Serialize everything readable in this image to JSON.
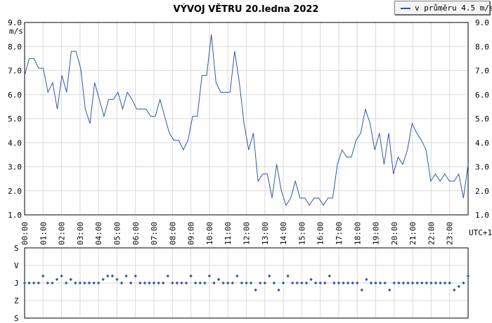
{
  "chart_data": [
    {
      "type": "line",
      "title": "VÝVOJ VĚTRU  20.ledna 2022",
      "ylabel": "m/s",
      "xlabel": "UTC+1",
      "legend": {
        "label": "v průměru 4.5 m/s",
        "placement": "top-right"
      },
      "color": "#3355aa",
      "grid": true,
      "ylim": [
        1.0,
        9.0
      ],
      "yticks": [
        "1.0",
        "2.0",
        "3.0",
        "4.0",
        "5.0",
        "6.0",
        "7.0",
        "8.0",
        "9.0"
      ],
      "xlim": [
        0,
        24
      ],
      "xticks": [
        "00:00",
        "01:00",
        "02:00",
        "03:00",
        "04:00",
        "05:00",
        "06:00",
        "07:00",
        "08:00",
        "09:00",
        "10:00",
        "11:00",
        "12:00",
        "13:00",
        "14:00",
        "15:00",
        "16:00",
        "17:00",
        "18:00",
        "19:00",
        "20:00",
        "21:00",
        "22:00",
        "23:00"
      ],
      "series": [
        {
          "values": [
            6.8,
            7.5,
            7.5,
            7.1,
            7.1,
            6.1,
            6.5,
            5.4,
            6.8,
            6.1,
            7.8,
            7.8,
            7.1,
            5.4,
            4.8,
            6.5,
            5.8,
            5.1,
            5.8,
            5.8,
            6.1,
            5.4,
            6.1,
            5.8,
            5.4,
            5.4,
            5.4,
            5.1,
            5.1,
            5.8,
            5.1,
            4.4,
            4.1,
            4.1,
            3.7,
            4.1,
            5.1,
            5.1,
            6.8,
            6.8,
            8.5,
            6.5,
            6.1,
            6.1,
            6.1,
            7.8,
            6.5,
            4.8,
            3.7,
            4.4,
            2.4,
            2.7,
            2.7,
            1.7,
            3.1,
            2.0,
            1.4,
            1.7,
            2.4,
            1.7,
            1.7,
            1.4,
            1.7,
            1.7,
            1.4,
            1.7,
            1.7,
            3.1,
            3.7,
            3.4,
            3.4,
            4.1,
            4.4,
            5.4,
            4.8,
            3.7,
            4.4,
            3.1,
            4.4,
            2.7,
            3.4,
            3.1,
            3.7,
            4.8,
            4.4,
            4.1,
            3.7,
            2.4,
            2.7,
            2.4,
            2.7,
            2.4,
            2.4,
            2.7,
            1.7,
            3.1
          ]
        }
      ]
    },
    {
      "type": "scatter",
      "yticks": [
        "S",
        "V",
        "J",
        "Z",
        "S"
      ],
      "ylim": [
        0,
        4
      ],
      "color": "#3355aa",
      "grid": true,
      "values": [
        2,
        2,
        2,
        2,
        1.6,
        2,
        2,
        1.8,
        1.6,
        2,
        1.8,
        2,
        2,
        2,
        2,
        2,
        2,
        1.8,
        1.6,
        1.6,
        1.8,
        2,
        1.6,
        2,
        1.6,
        2,
        2,
        2,
        2,
        2,
        2,
        1.6,
        2,
        2,
        2,
        2,
        1.6,
        2,
        2,
        2,
        1.6,
        2,
        1.8,
        2,
        2,
        2,
        1.6,
        2,
        2,
        2,
        2.4,
        2,
        2,
        1.6,
        2,
        2.4,
        2,
        1.6,
        2,
        2,
        2,
        2,
        1.8,
        2,
        2,
        2,
        1.6,
        2,
        2,
        2,
        2,
        2,
        2,
        2.4,
        1.8,
        2,
        2,
        2,
        2,
        2.4,
        2,
        2,
        2,
        2,
        2,
        2,
        2,
        2,
        2,
        2,
        2,
        2,
        2,
        2.4,
        2.2,
        2,
        1.6
      ]
    }
  ]
}
